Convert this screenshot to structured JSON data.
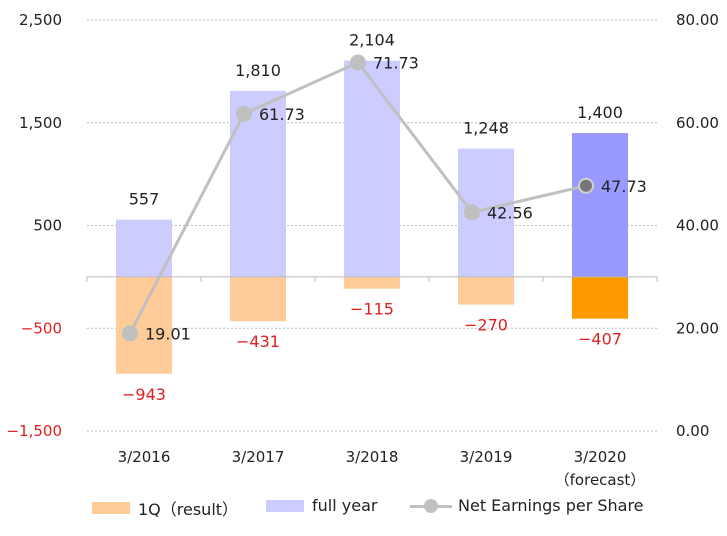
{
  "chart_data": {
    "type": "bar",
    "title": "",
    "categories": [
      "3/2016",
      "3/2017",
      "3/2018",
      "3/2019",
      "3/2020"
    ],
    "category_sublabels": [
      "",
      "",
      "",
      "",
      "（forecast）"
    ],
    "series": [
      {
        "name": "1Q（result）",
        "type": "bar",
        "axis": "left",
        "values": [
          -943,
          -431,
          -115,
          -270,
          -407
        ],
        "labels": [
          "−943",
          "−431",
          "−115",
          "−270",
          "−407"
        ]
      },
      {
        "name": "full year",
        "type": "bar",
        "axis": "left",
        "values": [
          557,
          1810,
          2104,
          1248,
          1400
        ],
        "labels": [
          "557",
          "1,810",
          "2,104",
          "1,248",
          "1,400"
        ]
      },
      {
        "name": "Net Earnings per Share",
        "type": "line",
        "axis": "right",
        "values": [
          19.01,
          61.73,
          71.73,
          42.56,
          47.73
        ],
        "labels": [
          "19.01",
          "61.73",
          "71.73",
          "42.56",
          "47.73"
        ]
      }
    ],
    "left_axis": {
      "ylim": [
        -1500,
        2500
      ],
      "ticks": [
        -1500,
        -500,
        500,
        1500,
        2500
      ],
      "tick_labels": [
        "−1,500",
        "−500",
        "500",
        "1,500",
        "2,500"
      ]
    },
    "right_axis": {
      "ylim": [
        0,
        80
      ],
      "ticks": [
        0,
        20,
        40,
        60,
        80
      ],
      "tick_labels": [
        "0.00",
        "20.00",
        "40.00",
        "60.00",
        "80.00"
      ]
    },
    "grid": true,
    "legend_position": "bottom",
    "colors": {
      "q1_bar": "#ffcc99",
      "full_year_bar": "#ccccff",
      "q1_bar_forecast": "#ff9900",
      "full_year_bar_forecast": "#9999ff",
      "line": "#c0c0c0",
      "marker_forecast": "#777777",
      "negative_text": "#e02020",
      "grid": "#bbbbbb",
      "text": "#222222"
    }
  },
  "legend": {
    "q1_label": "1Q（result）",
    "full_year_label": "full year",
    "eps_label": "Net Earnings per Share"
  }
}
